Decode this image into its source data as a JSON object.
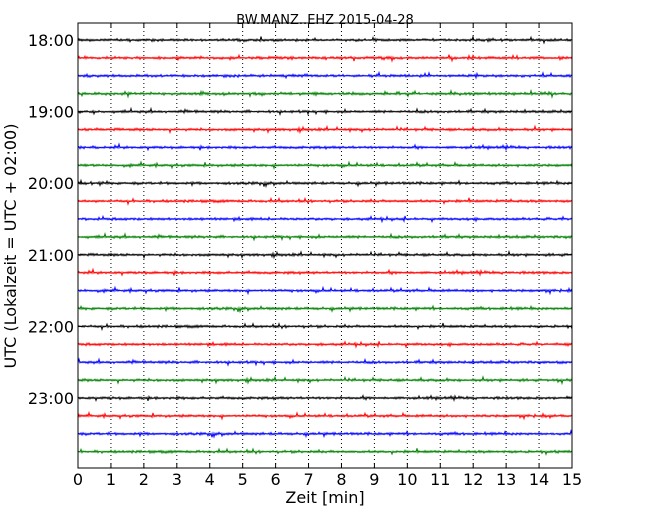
{
  "chart_data": {
    "type": "line",
    "title": "BW.MANZ..EHZ 2015-04-28",
    "xlabel": "Zeit  [min]",
    "ylabel": "UTC (Lokalzeit = UTC + 02:00)",
    "xlim": [
      0,
      15
    ],
    "x_ticks": [
      "0",
      "1",
      "2",
      "3",
      "4",
      "5",
      "6",
      "7",
      "8",
      "9",
      "10",
      "11",
      "12",
      "13",
      "14",
      "15"
    ],
    "y_ticks": [
      "18:00",
      "19:00",
      "20:00",
      "21:00",
      "22:00",
      "23:00"
    ],
    "grid": "vertical dotted lines at each minute",
    "trace_colors": [
      "#000000",
      "#ff0000",
      "#0000ff",
      "#008000"
    ],
    "traces_start": "18:00",
    "trace_interval_minutes": 15,
    "trace_count": 24,
    "trace_start_labels": [
      "18:00",
      "18:15",
      "18:30",
      "18:45",
      "19:00",
      "19:15",
      "19:30",
      "19:45",
      "20:00",
      "20:15",
      "20:30",
      "20:45",
      "21:00",
      "21:15",
      "21:30",
      "21:45",
      "22:00",
      "22:15",
      "22:30",
      "22:45",
      "23:00",
      "23:15",
      "23:30",
      "23:45"
    ]
  }
}
